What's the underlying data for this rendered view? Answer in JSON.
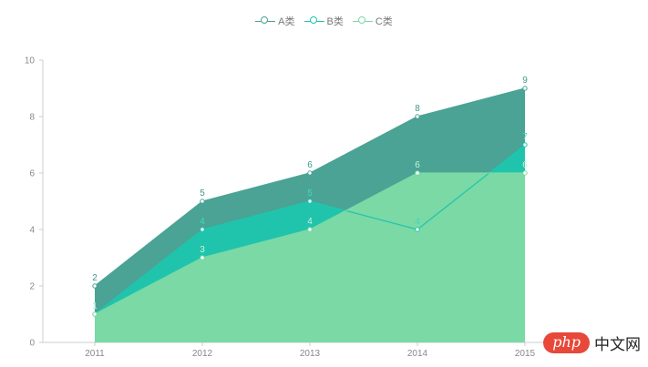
{
  "colors": {
    "series": [
      "#4aa394",
      "#20c4ad",
      "#7ad9a5"
    ],
    "labels": [
      "#3a9a88",
      "#3ed8c0",
      "#c6f3dc"
    ],
    "axis": "#cccccc",
    "tick_text": "#888888"
  },
  "chart_data": {
    "type": "area",
    "categories": [
      "2011",
      "2012",
      "2013",
      "2014",
      "2015"
    ],
    "series": [
      {
        "name": "A类",
        "values": [
          2,
          5,
          6,
          8,
          9
        ]
      },
      {
        "name": "B类",
        "values": [
          1,
          4,
          5,
          4,
          7
        ]
      },
      {
        "name": "C类",
        "values": [
          1,
          3,
          4,
          6,
          6
        ]
      }
    ],
    "y_ticks": [
      "0",
      "2",
      "4",
      "6",
      "8",
      "10"
    ],
    "ylim": [
      0,
      10
    ],
    "legend_position": "top-center",
    "grid": false,
    "data_labels": true
  },
  "watermark": {
    "badge": "php",
    "text": "中文网"
  }
}
